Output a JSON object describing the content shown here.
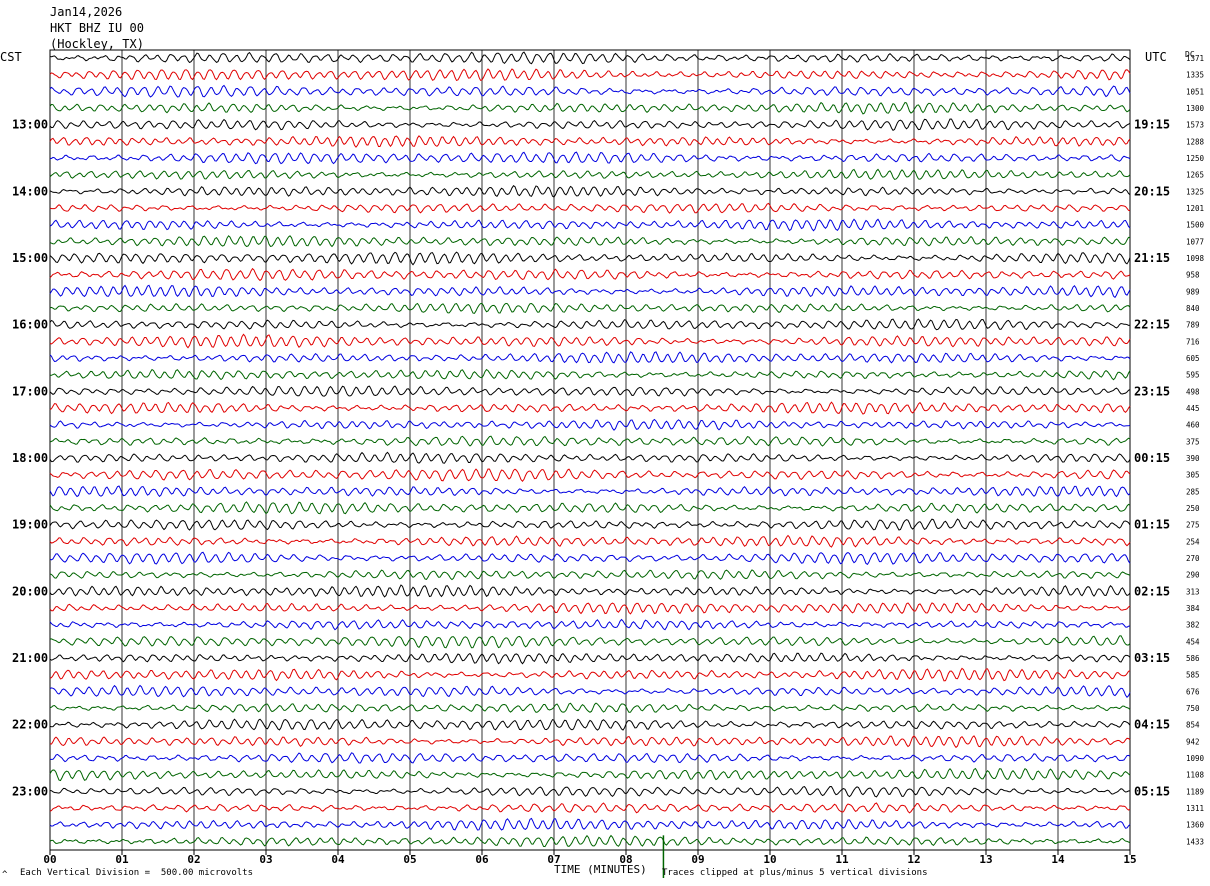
{
  "header": {
    "date": "Jan14,2026",
    "station": "HKT BHZ IU 00",
    "location": "(Hockley, TX)"
  },
  "left_zone": "CST",
  "right_zone": "UTC",
  "dc_label": "DC",
  "footer": {
    "scale_note": "Each Vertical Division =  500.00 microvolts",
    "clip_note": "Traces clipped at plus/minus 5 vertical divisions",
    "corner_mark": "^"
  },
  "colors": {
    "trace_cycle": [
      "#000000",
      "#e00000",
      "#0000e0",
      "#006400"
    ],
    "grid": "#000000"
  },
  "chart_data": {
    "type": "line",
    "xlabel": "TIME (MINUTES)",
    "xlim": [
      0,
      15
    ],
    "x_ticks": [
      "00",
      "01",
      "02",
      "03",
      "04",
      "05",
      "06",
      "07",
      "08",
      "09",
      "10",
      "11",
      "12",
      "13",
      "14",
      "15"
    ],
    "left_hour_labels": [
      "13:00",
      "14:00",
      "15:00",
      "16:00",
      "17:00",
      "18:00",
      "19:00",
      "20:00",
      "21:00",
      "22:00",
      "23:00"
    ],
    "right_hour_labels": [
      "19:15",
      "20:15",
      "21:15",
      "22:15",
      "23:15",
      "00:15",
      "01:15",
      "02:15",
      "03:15",
      "04:15",
      "05:15"
    ],
    "rows_per_hour": 4,
    "first_label_row": 4,
    "dc_offsets": [
      1371,
      1335,
      1051,
      1300,
      1573,
      1288,
      1250,
      1265,
      1325,
      1201,
      1500,
      1077,
      1098,
      958,
      989,
      840,
      789,
      716,
      605,
      595,
      498,
      445,
      460,
      375,
      390,
      305,
      285,
      250,
      275,
      254,
      270,
      290,
      313,
      384,
      382,
      454,
      586,
      585,
      676,
      750,
      854,
      942,
      1090,
      1108,
      1189,
      1311,
      1360,
      1433
    ],
    "trace_color_cycle": [
      "black",
      "red",
      "blue",
      "green"
    ]
  }
}
